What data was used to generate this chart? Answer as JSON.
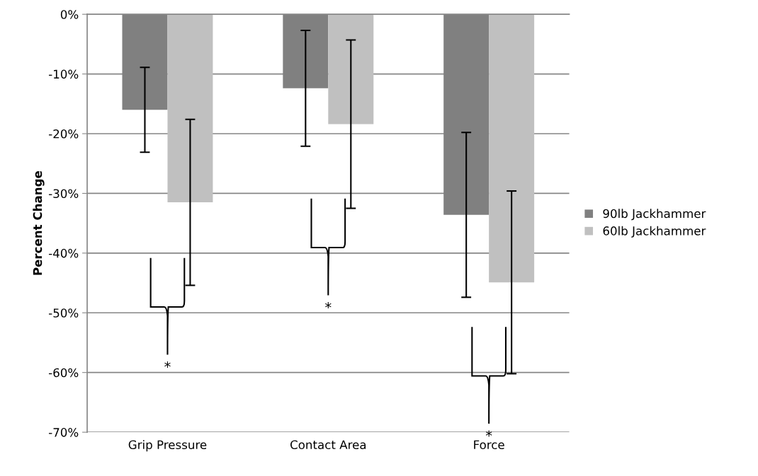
{
  "chart_data": {
    "type": "bar",
    "ylabel": "Percent Change",
    "categories": [
      "Grip Pressure",
      "Contact Area",
      "Force"
    ],
    "series": [
      {
        "name": "90lb Jackhammer",
        "color": "#808080",
        "values": [
          -16.0,
          -12.4,
          -33.6
        ],
        "errors": [
          7.1,
          9.7,
          13.8
        ]
      },
      {
        "name": "60lb Jackhammer",
        "color": "#c0c0c0",
        "values": [
          -31.5,
          -18.4,
          -44.9
        ],
        "errors": [
          13.9,
          14.1,
          15.3
        ]
      }
    ],
    "ylim": [
      -70,
      0
    ],
    "yticks": [
      {
        "value": -70,
        "label": "-70%"
      },
      {
        "value": -60,
        "label": "-60%"
      },
      {
        "value": -50,
        "label": "-50%"
      },
      {
        "value": -40,
        "label": "-40%"
      },
      {
        "value": -30,
        "label": "-30%"
      },
      {
        "value": -20,
        "label": "-20%"
      },
      {
        "value": -10,
        "label": "-10%"
      },
      {
        "value": 0,
        "label": "0%"
      }
    ],
    "grid": "y",
    "legend": "right",
    "annotations": [
      "*",
      "*",
      "*"
    ]
  }
}
